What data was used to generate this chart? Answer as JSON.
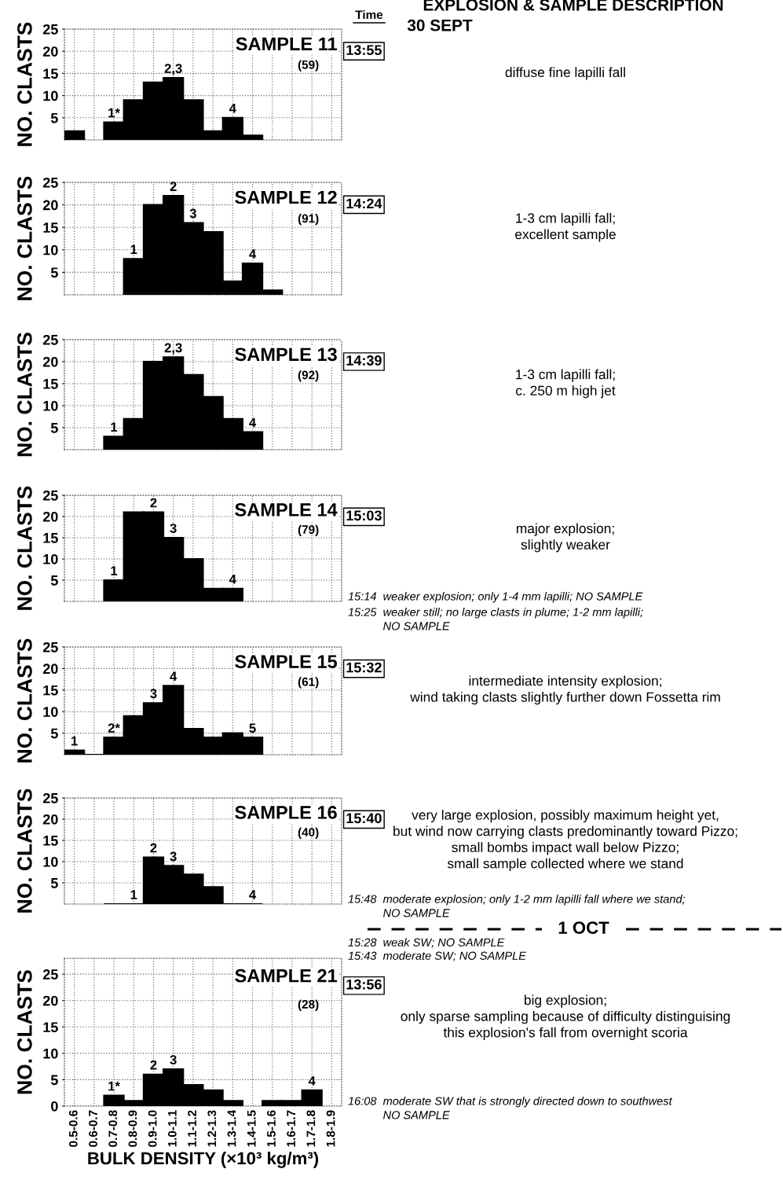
{
  "chart_data": [
    {
      "type": "bar",
      "title": "SAMPLE 11",
      "subtitle": "(59)",
      "ylabel": "NO. CLASTS",
      "color": "#000000",
      "grid": true,
      "tick_labels": "y",
      "ylim": [
        0,
        25
      ],
      "yticks": [
        5,
        10,
        15,
        20,
        25
      ],
      "categories": [
        "0.5-0.6",
        "0.6-0.7",
        "0.7-0.8",
        "0.8-0.9",
        "0.9-1.0",
        "1.0-1.1",
        "1.1-1.2",
        "1.2-1.3",
        "1.3-1.4",
        "1.4-1.5",
        "1.5-1.6",
        "1.6-1.7",
        "1.7-1.8",
        "1.8-1.9"
      ],
      "values": [
        2,
        null,
        4,
        9,
        13,
        14,
        9,
        2,
        5,
        1,
        null,
        null,
        null,
        null
      ],
      "annotations": [
        "13:55",
        "diffuse fine lapilli fall",
        {
          "text": "1*",
          "x": "0.7-0.8",
          "y": 4
        },
        {
          "text": "2,3",
          "x": "1.0-1.1",
          "y": 14
        },
        {
          "text": "4",
          "x": "1.3-1.4",
          "y": 5
        }
      ]
    },
    {
      "type": "bar",
      "title": "SAMPLE 12",
      "subtitle": "(91)",
      "ylabel": "NO. CLASTS",
      "color": "#000000",
      "grid": true,
      "tick_labels": "y",
      "ylim": [
        0,
        25
      ],
      "yticks": [
        5,
        10,
        15,
        20,
        25
      ],
      "categories": [
        "0.5-0.6",
        "0.6-0.7",
        "0.7-0.8",
        "0.8-0.9",
        "0.9-1.0",
        "1.0-1.1",
        "1.1-1.2",
        "1.2-1.3",
        "1.3-1.4",
        "1.4-1.5",
        "1.5-1.6",
        "1.6-1.7",
        "1.7-1.8",
        "1.8-1.9"
      ],
      "values": [
        null,
        null,
        null,
        8,
        20,
        22,
        16,
        14,
        3,
        7,
        1,
        null,
        null,
        null
      ],
      "annotations": [
        "14:24",
        "1-3 cm lapilli fall;\nexcellent sample",
        {
          "text": "1",
          "x": "0.8-0.9",
          "y": 8
        },
        {
          "text": "2",
          "x": "1.0-1.1",
          "y": 22
        },
        {
          "text": "3",
          "x": "1.1-1.2",
          "y": 16
        },
        {
          "text": "4",
          "x": "1.4-1.5",
          "y": 7
        }
      ]
    },
    {
      "type": "bar",
      "title": "SAMPLE 13",
      "subtitle": "(92)",
      "ylabel": "NO. CLASTS",
      "color": "#000000",
      "grid": true,
      "tick_labels": "y",
      "ylim": [
        0,
        25
      ],
      "yticks": [
        5,
        10,
        15,
        20,
        25
      ],
      "categories": [
        "0.5-0.6",
        "0.6-0.7",
        "0.7-0.8",
        "0.8-0.9",
        "0.9-1.0",
        "1.0-1.1",
        "1.1-1.2",
        "1.2-1.3",
        "1.3-1.4",
        "1.4-1.5",
        "1.5-1.6",
        "1.6-1.7",
        "1.7-1.8",
        "1.8-1.9"
      ],
      "values": [
        null,
        null,
        3,
        7,
        20,
        21,
        17,
        12,
        7,
        4,
        null,
        null,
        null,
        null
      ],
      "annotations": [
        "14:39",
        "1-3 cm lapilli fall;\nc. 250 m high jet",
        {
          "text": "1",
          "x": "0.7-0.8",
          "y": 3
        },
        {
          "text": "2,3",
          "x": "1.0-1.1",
          "y": 21
        },
        {
          "text": "4",
          "x": "1.4-1.5",
          "y": 4
        }
      ]
    },
    {
      "type": "bar",
      "title": "SAMPLE 14",
      "subtitle": "(79)",
      "ylabel": "NO. CLASTS",
      "color": "#000000",
      "grid": true,
      "tick_labels": "y",
      "ylim": [
        0,
        25
      ],
      "yticks": [
        5,
        10,
        15,
        20,
        25
      ],
      "categories": [
        "0.5-0.6",
        "0.6-0.7",
        "0.7-0.8",
        "0.8-0.9",
        "0.9-1.0",
        "1.0-1.1",
        "1.1-1.2",
        "1.2-1.3",
        "1.3-1.4",
        "1.4-1.5",
        "1.5-1.6",
        "1.6-1.7",
        "1.7-1.8",
        "1.8-1.9"
      ],
      "values": [
        null,
        null,
        5,
        21,
        21,
        15,
        10,
        3,
        3,
        null,
        null,
        null,
        null,
        null
      ],
      "annotations": [
        "15:03",
        "major explosion;\nslightly weaker",
        "15:14  weaker explosion; only 1-4 mm lapilli; NO SAMPLE",
        "15:25  weaker still; no large clasts in plume; 1-2 mm lapilli;\n           NO SAMPLE",
        {
          "text": "1",
          "x": "0.7-0.8",
          "y": 5
        },
        {
          "text": "2",
          "x": "0.9-1.0",
          "y": 21
        },
        {
          "text": "3",
          "x": "1.0-1.1",
          "y": 15
        },
        {
          "text": "4",
          "x": "1.3-1.4",
          "y": 3
        }
      ]
    },
    {
      "type": "bar",
      "title": "SAMPLE 15",
      "subtitle": "(61)",
      "ylabel": "NO. CLASTS",
      "color": "#000000",
      "grid": true,
      "tick_labels": "y",
      "ylim": [
        0,
        25
      ],
      "yticks": [
        5,
        10,
        15,
        20,
        25
      ],
      "categories": [
        "0.5-0.6",
        "0.6-0.7",
        "0.7-0.8",
        "0.8-0.9",
        "0.9-1.0",
        "1.0-1.1",
        "1.1-1.2",
        "1.2-1.3",
        "1.3-1.4",
        "1.4-1.5",
        "1.5-1.6",
        "1.6-1.7",
        "1.7-1.8",
        "1.8-1.9"
      ],
      "values": [
        1,
        0,
        4,
        9,
        12,
        16,
        6,
        4,
        5,
        4,
        null,
        null,
        null,
        null
      ],
      "annotations": [
        "15:32",
        "intermediate intensity explosion;\nwind taking clasts slightly further down Fossetta rim",
        {
          "text": "1",
          "x": "0.5-0.6",
          "y": 1
        },
        {
          "text": "2*",
          "x": "0.7-0.8",
          "y": 4
        },
        {
          "text": "3",
          "x": "0.9-1.0",
          "y": 12
        },
        {
          "text": "4",
          "x": "1.0-1.1",
          "y": 16
        },
        {
          "text": "5",
          "x": "1.4-1.5",
          "y": 4
        }
      ]
    },
    {
      "type": "bar",
      "title": "SAMPLE 16",
      "subtitle": "(40)",
      "ylabel": "NO. CLASTS",
      "color": "#000000",
      "grid": true,
      "tick_labels": "y",
      "ylim": [
        0,
        25
      ],
      "yticks": [
        5,
        10,
        15,
        20,
        25
      ],
      "categories": [
        "0.5-0.6",
        "0.6-0.7",
        "0.7-0.8",
        "0.8-0.9",
        "0.9-1.0",
        "1.0-1.1",
        "1.1-1.2",
        "1.2-1.3",
        "1.3-1.4",
        "1.4-1.5",
        "1.5-1.6",
        "1.6-1.7",
        "1.7-1.8",
        "1.8-1.9"
      ],
      "values": [
        null,
        null,
        0,
        0,
        11,
        9,
        7,
        4,
        0,
        0,
        null,
        null,
        null,
        null
      ],
      "annotations": [
        "15:40",
        "very large explosion, possibly maximum height yet,\nbut wind now carrying clasts predominantly toward Pizzo;\nsmall bombs impact wall below Pizzo;\nsmall sample collected where we stand",
        "15:48  moderate explosion; only 1-2 mm lapilli fall where we stand;\n           NO SAMPLE",
        {
          "text": "1",
          "x": "0.8-0.9",
          "y": 0
        },
        {
          "text": "2",
          "x": "0.9-1.0",
          "y": 11
        },
        {
          "text": "3",
          "x": "1.0-1.1",
          "y": 9
        },
        {
          "text": "4",
          "x": "1.4-1.5",
          "y": 0
        }
      ]
    },
    {
      "type": "bar",
      "title": "SAMPLE 21",
      "subtitle": "(28)",
      "ylabel": "NO. CLASTS",
      "xlabel": "BULK DENSITY (×10³ kg/m³)",
      "color": "#000000",
      "grid": true,
      "ylim": [
        0,
        28
      ],
      "yticks": [
        0,
        5,
        10,
        15,
        20,
        25
      ],
      "categories": [
        "0.5-0.6",
        "0.6-0.7",
        "0.7-0.8",
        "0.8-0.9",
        "0.9-1.0",
        "1.0-1.1",
        "1.1-1.2",
        "1.2-1.3",
        "1.3-1.4",
        "1.4-1.5",
        "1.5-1.6",
        "1.6-1.7",
        "1.7-1.8",
        "1.8-1.9"
      ],
      "values": [
        null,
        null,
        2,
        1,
        6,
        7,
        4,
        3,
        1,
        null,
        1,
        1,
        3,
        null
      ],
      "annotations": [
        "13:56",
        "big explosion;\nonly sparse sampling because of difficulty distinguising\nthis explosion's fall from overnight scoria",
        "16:08  moderate SW that is strongly directed down to southwest\n           NO SAMPLE",
        {
          "text": "1*",
          "x": "0.7-0.8",
          "y": 2
        },
        {
          "text": "2",
          "x": "0.9-1.0",
          "y": 6
        },
        {
          "text": "3",
          "x": "1.0-1.1",
          "y": 7
        },
        {
          "text": "4",
          "x": "1.7-1.8",
          "y": 3
        }
      ]
    },
    {
      "type": "other",
      "annotations": [
        "EXPLOSION & SAMPLE DESCRIPTION",
        "Time",
        "30 SEPT",
        "1 OCT",
        "15:28  weak SW; NO SAMPLE",
        "15:43  moderate SW; NO SAMPLE"
      ]
    }
  ]
}
